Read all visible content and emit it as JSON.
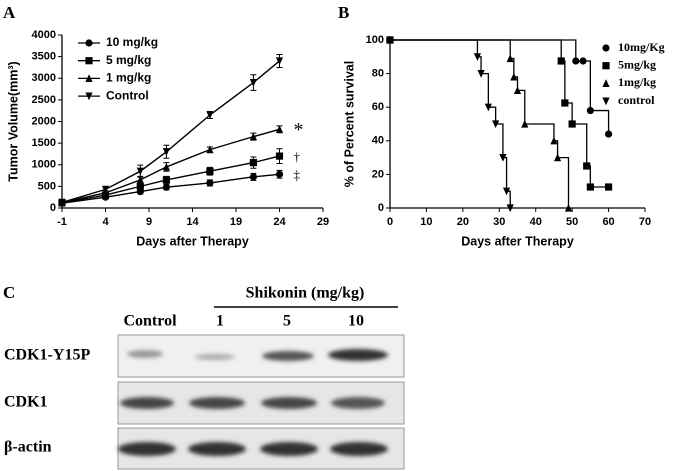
{
  "chart_data": [
    {
      "type": "line",
      "panel_label": "A",
      "xlabel": "Days after Therapy",
      "ylabel": "Tumor Volume(mm³)",
      "xlim": [
        -1,
        29
      ],
      "xticks": [
        -1,
        4,
        9,
        14,
        19,
        24,
        29
      ],
      "ylim": [
        0,
        4000
      ],
      "yticks": [
        0,
        500,
        1000,
        1500,
        2000,
        2500,
        3000,
        3500,
        4000
      ],
      "x": [
        -1,
        4,
        8,
        11,
        16,
        21,
        24
      ],
      "series": [
        {
          "name": "10 mg/kg",
          "color": "#000000",
          "marker": "circle",
          "values": [
            110,
            250,
            380,
            480,
            580,
            720,
            780
          ],
          "errors": [
            30,
            40,
            50,
            60,
            70,
            80,
            90
          ],
          "annotation": "‡"
        },
        {
          "name": "5 mg/kg",
          "color": "#000000",
          "marker": "square",
          "values": [
            120,
            300,
            500,
            650,
            850,
            1050,
            1200
          ],
          "errors": [
            30,
            50,
            60,
            80,
            90,
            130,
            170
          ],
          "annotation": "†"
        },
        {
          "name": "1 mg/kg",
          "color": "#000000",
          "marker": "triangle",
          "values": [
            130,
            350,
            650,
            950,
            1350,
            1650,
            1820
          ],
          "errors": [
            30,
            50,
            80,
            100,
            60,
            80,
            80
          ],
          "annotation": "*"
        },
        {
          "name": "Control",
          "color": "#000000",
          "marker": "triangle-down",
          "values": [
            130,
            430,
            850,
            1300,
            2150,
            2900,
            3400
          ],
          "errors": [
            40,
            60,
            140,
            150,
            80,
            180,
            150
          ]
        }
      ]
    },
    {
      "type": "step",
      "panel_label": "B",
      "xlabel": "Days after Therapy",
      "ylabel": "% of Percent survival",
      "xlim": [
        0,
        70
      ],
      "xticks": [
        0,
        10,
        20,
        30,
        40,
        50,
        60,
        70
      ],
      "ylim": [
        0,
        100
      ],
      "yticks": [
        0,
        20,
        40,
        60,
        80,
        100
      ],
      "series": [
        {
          "name": "10mg/Kg",
          "color": "#000000",
          "marker": "circle",
          "x": [
            0,
            51,
            53,
            55,
            60
          ],
          "values": [
            100,
            87.5,
            87.5,
            58,
            44
          ]
        },
        {
          "name": "5mg/kg",
          "color": "#000000",
          "marker": "square",
          "x": [
            0,
            47,
            48,
            50,
            54,
            55,
            60
          ],
          "values": [
            100,
            87.5,
            62.5,
            50,
            25,
            12.5,
            12.5
          ]
        },
        {
          "name": "1mg/kg",
          "color": "#000000",
          "marker": "triangle",
          "x": [
            0,
            33,
            34,
            35,
            37,
            45,
            46,
            49
          ],
          "values": [
            100,
            89,
            78,
            70,
            50,
            40,
            30,
            0
          ]
        },
        {
          "name": "control",
          "color": "#000000",
          "marker": "triangle-down",
          "x": [
            0,
            24,
            25,
            27,
            29,
            31,
            32,
            33
          ],
          "values": [
            100,
            90,
            80,
            60,
            50,
            30,
            10,
            0
          ]
        }
      ]
    }
  ],
  "blot": {
    "panel_label": "C",
    "treatment": "Shikonin (mg/kg)",
    "lanes": [
      "Control",
      "1",
      "5",
      "10"
    ],
    "rows": [
      "CDK1-Y15P",
      "CDK1",
      "β-actin"
    ]
  }
}
